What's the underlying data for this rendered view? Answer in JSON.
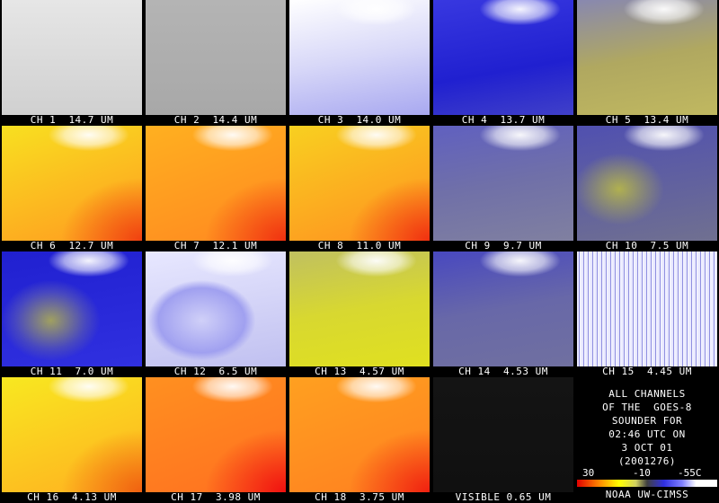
{
  "panels": [
    {
      "label": "CH 1  14.7 UM"
    },
    {
      "label": "CH 2  14.4 UM"
    },
    {
      "label": "CH 3  14.0 UM"
    },
    {
      "label": "CH 4  13.7 UM"
    },
    {
      "label": "CH 5  13.4 UM"
    },
    {
      "label": "CH 6  12.7 UM"
    },
    {
      "label": "CH 7  12.1 UM"
    },
    {
      "label": "CH 8  11.0 UM"
    },
    {
      "label": "CH 9  9.7 UM"
    },
    {
      "label": "CH 10  7.5 UM"
    },
    {
      "label": "CH 11  7.0 UM"
    },
    {
      "label": "CH 12  6.5 UM"
    },
    {
      "label": "CH 13  4.57 UM"
    },
    {
      "label": "CH 14  4.53 UM"
    },
    {
      "label": "CH 15  4.45 UM"
    },
    {
      "label": "CH 16  4.13 UM"
    },
    {
      "label": "CH 17  3.98 UM"
    },
    {
      "label": "CH 18  3.75 UM"
    },
    {
      "label": "VISIBLE 0.65 UM"
    }
  ],
  "info": {
    "lines": [
      "ALL CHANNELS",
      "OF THE  GOES-8",
      "SOUNDER FOR",
      "02:46 UTC ON",
      "3 OCT 01",
      "(2001276)"
    ],
    "colorbar_labels": [
      "30",
      "-10",
      "-55C"
    ],
    "credit": "NOAA UW-CIMSS"
  }
}
